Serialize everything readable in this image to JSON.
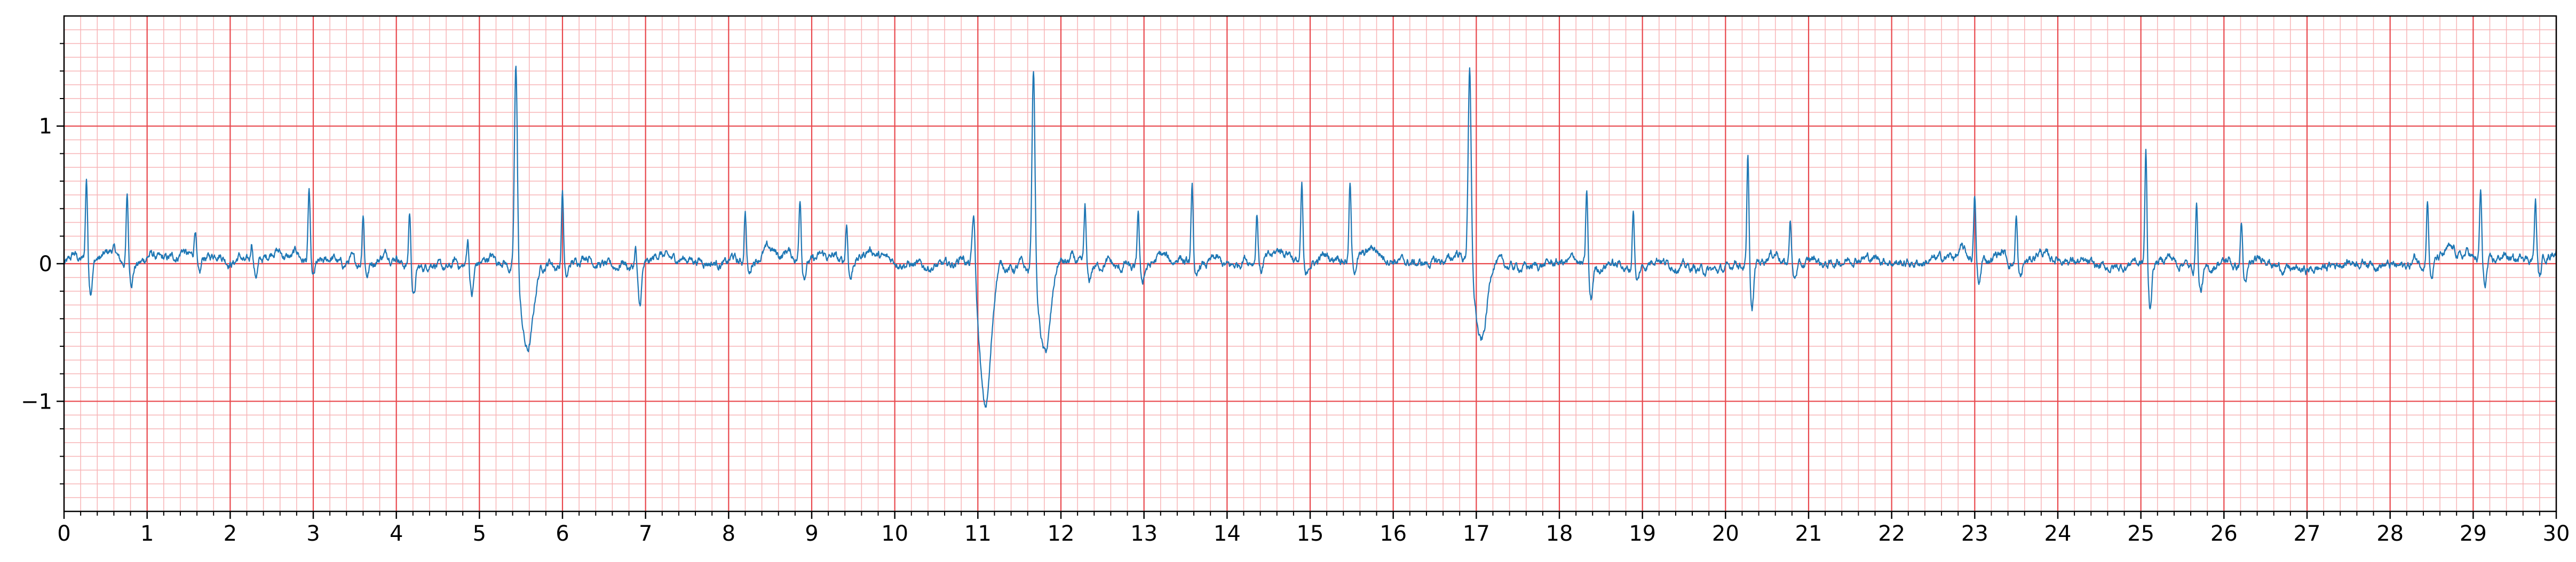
{
  "chart_data": {
    "type": "line",
    "title": "",
    "xlabel": "",
    "ylabel": "",
    "xlim": [
      0,
      30
    ],
    "ylim": [
      -1.8,
      1.8
    ],
    "x_ticks": [
      0,
      1,
      2,
      3,
      4,
      5,
      6,
      7,
      8,
      9,
      10,
      11,
      12,
      13,
      14,
      15,
      16,
      17,
      18,
      19,
      20,
      21,
      22,
      23,
      24,
      25,
      26,
      27,
      28,
      29,
      30
    ],
    "x_tick_labels": [
      "0",
      "1",
      "2",
      "3",
      "4",
      "5",
      "6",
      "7",
      "8",
      "9",
      "10",
      "11",
      "12",
      "13",
      "14",
      "15",
      "16",
      "17",
      "18",
      "19",
      "20",
      "21",
      "22",
      "23",
      "24",
      "25",
      "26",
      "27",
      "28",
      "29",
      "30"
    ],
    "y_ticks": [
      -1,
      0,
      1
    ],
    "y_tick_labels": [
      "−1",
      "0",
      "1"
    ],
    "grid": true,
    "major_grid": {
      "x_step": 1,
      "y_step": 1,
      "color": "#e8474c"
    },
    "minor_grid": {
      "x_step": 0.2,
      "y_step": 0.1,
      "color": "#f7b4b6"
    },
    "series": [
      {
        "name": "",
        "color": "#1f77b4",
        "baseline": 0.0,
        "beats": [
          {
            "t": 0.27,
            "amp": 0.6,
            "s": -0.22
          },
          {
            "t": 0.76,
            "amp": 0.5,
            "s": -0.12
          },
          {
            "t": 1.58,
            "amp": 0.22,
            "s": -0.15
          },
          {
            "t": 2.26,
            "amp": 0.15,
            "s": -0.1
          },
          {
            "t": 2.95,
            "amp": 0.52,
            "s": -0.12
          },
          {
            "t": 3.6,
            "amp": 0.38,
            "s": -0.08
          },
          {
            "t": 4.16,
            "amp": 0.4,
            "s": -0.2
          },
          {
            "t": 4.86,
            "amp": 0.2,
            "s": -0.22
          },
          {
            "t": 5.44,
            "amp": 1.55,
            "s": -0.58,
            "wide": true
          },
          {
            "t": 6.0,
            "amp": 0.55,
            "s": -0.1
          },
          {
            "t": 6.88,
            "amp": 0.15,
            "s": -0.3
          },
          {
            "t": 8.2,
            "amp": 0.38,
            "s": -0.1
          },
          {
            "t": 8.86,
            "amp": 0.45,
            "s": -0.1
          },
          {
            "t": 9.42,
            "amp": 0.28,
            "s": -0.12
          },
          {
            "t": 10.95,
            "amp": 0.45,
            "s": -1.05,
            "wide": true
          },
          {
            "t": 11.67,
            "amp": 1.55,
            "s": -0.62,
            "wide": true
          },
          {
            "t": 12.29,
            "amp": 0.42,
            "s": -0.12
          },
          {
            "t": 12.93,
            "amp": 0.42,
            "s": -0.1
          },
          {
            "t": 13.58,
            "amp": 0.58,
            "s": -0.12
          },
          {
            "t": 14.36,
            "amp": 0.35,
            "s": -0.08
          },
          {
            "t": 14.9,
            "amp": 0.55,
            "s": -0.12
          },
          {
            "t": 15.48,
            "amp": 0.55,
            "s": -0.1
          },
          {
            "t": 16.92,
            "amp": 1.45,
            "s": -0.6,
            "wide": true
          },
          {
            "t": 18.33,
            "amp": 0.55,
            "s": -0.25
          },
          {
            "t": 18.89,
            "amp": 0.45,
            "s": -0.1
          },
          {
            "t": 20.27,
            "amp": 0.78,
            "s": -0.35
          },
          {
            "t": 20.78,
            "amp": 0.35,
            "s": -0.1
          },
          {
            "t": 23.0,
            "amp": 0.45,
            "s": -0.2
          },
          {
            "t": 23.5,
            "amp": 0.35,
            "s": -0.12
          },
          {
            "t": 25.06,
            "amp": 0.82,
            "s": -0.32
          },
          {
            "t": 25.67,
            "amp": 0.52,
            "s": -0.15
          },
          {
            "t": 26.21,
            "amp": 0.32,
            "s": -0.15
          },
          {
            "t": 28.45,
            "amp": 0.48,
            "s": -0.12
          },
          {
            "t": 29.09,
            "amp": 0.52,
            "s": -0.18
          },
          {
            "t": 29.75,
            "amp": 0.42,
            "s": -0.15
          }
        ]
      }
    ]
  }
}
